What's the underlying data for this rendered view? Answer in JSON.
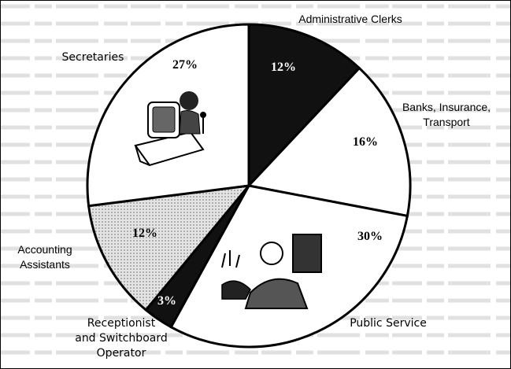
{
  "chart_data": {
    "type": "pie",
    "categories": [
      "Administrative Clerks",
      "Banks, Insurance, Transport",
      "Public Service",
      "Receptionist and Switchboard Operator",
      "Accounting Assistants",
      "Secretaries"
    ],
    "values": [
      12,
      16,
      30,
      3,
      12,
      27
    ],
    "value_labels": [
      "12%",
      "16%",
      "30%",
      "3%",
      "12%",
      "27%"
    ],
    "category_labels": [
      [
        "Administrative Clerks"
      ],
      [
        "Banks, Insurance,",
        "Transport"
      ],
      [
        "Public Service"
      ],
      [
        "Receptionist",
        "and Switchboard",
        "Operator"
      ],
      [
        "Accounting",
        "Assistants"
      ],
      [
        "Secretaries"
      ]
    ],
    "fills": [
      "#111111",
      "#ffffff",
      "#ffffff",
      "#111111",
      "#d8d8d8",
      "#ffffff"
    ],
    "label_colors": [
      "#ffffff",
      "#000000",
      "#000000",
      "#ffffff",
      "#000000",
      "#000000"
    ],
    "start_angle_deg": 0,
    "direction": "clockwise",
    "title": "",
    "legend": "none"
  }
}
